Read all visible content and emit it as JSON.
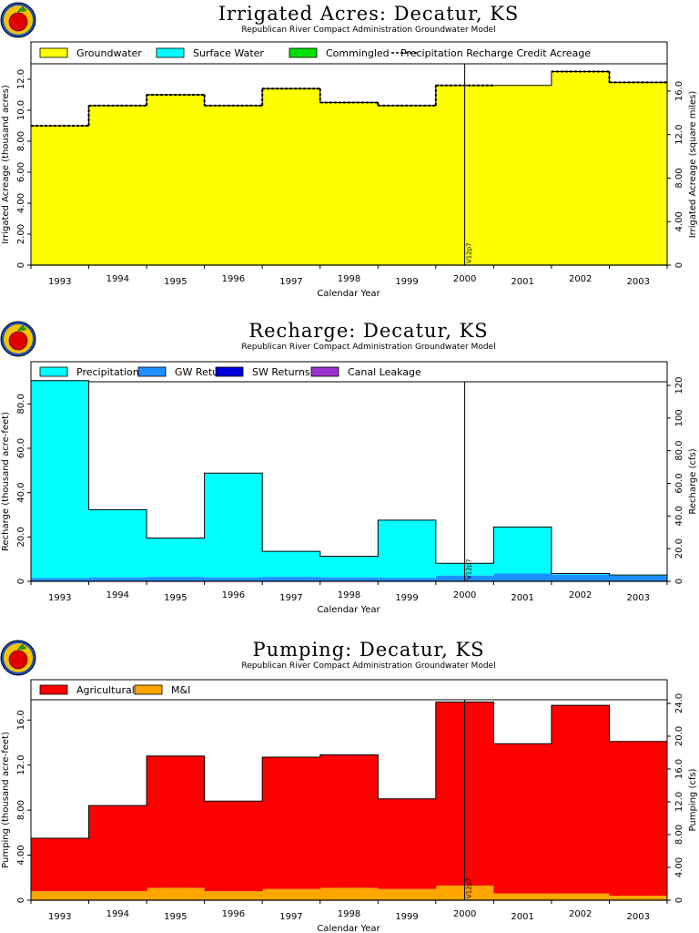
{
  "colors": {
    "groundwater": "#ffff00",
    "surface_water": "#00ffff",
    "commingled": "#00e000",
    "precip_credit_line": "#000000",
    "precipitation": "#00ffff",
    "gw_returns": "#1e90ff",
    "sw_returns": "#0000dd",
    "canal_leakage": "#9932cc",
    "agricultural": "#ff0000",
    "mi": "#ffa500"
  },
  "icons": [
    "apple-logo-icon",
    "apple-logo-icon",
    "apple-logo-icon"
  ],
  "years": [
    "1993",
    "1994",
    "1995",
    "1996",
    "1997",
    "1998",
    "1999",
    "2000",
    "2001",
    "2002",
    "2003"
  ],
  "vertical_marker": "V12p7",
  "chart_data": [
    {
      "id": "irrigated",
      "type": "area",
      "title": "Irrigated Acres: Decatur, KS",
      "subtitle": "Republican River Compact Administration Groundwater Model",
      "xlabel": "Calendar Year",
      "ylabel": "Irrigated Acreage (thousand acres)",
      "ylabel_right": "Irrigated Acreage (square miles)",
      "ylim": [
        0,
        13.0
      ],
      "yticks": [
        "0",
        "2.00",
        "4.00",
        "6.00",
        "8.00",
        "10.0",
        "12.0"
      ],
      "yticks_right": [
        "0",
        "4.00",
        "8.00",
        "12.0",
        "16.0"
      ],
      "legend": {
        "position": "top",
        "entries": [
          {
            "label": "Groundwater",
            "color_key": "groundwater",
            "kind": "box"
          },
          {
            "label": "Surface Water",
            "color_key": "surface_water",
            "kind": "box"
          },
          {
            "label": "Commingled",
            "color_key": "commingled",
            "kind": "box"
          },
          {
            "label": "Precipitation Recharge Credit Acreage",
            "color_key": "precip_credit_line",
            "kind": "dash"
          }
        ]
      },
      "series": [
        {
          "name": "Groundwater",
          "color_key": "groundwater",
          "values": [
            9.0,
            10.3,
            11.0,
            10.3,
            11.4,
            10.5,
            10.3,
            11.6,
            11.6,
            12.5,
            11.8
          ]
        },
        {
          "name": "Surface Water",
          "color_key": "surface_water",
          "values": [
            0,
            0,
            0,
            0,
            0,
            0,
            0,
            0,
            0,
            0,
            0
          ]
        },
        {
          "name": "Commingled",
          "color_key": "commingled",
          "values": [
            0,
            0,
            0,
            0,
            0,
            0,
            0,
            0,
            0,
            0,
            0
          ]
        }
      ],
      "line": {
        "name": "Precipitation Recharge Credit Acreage",
        "values": [
          9.0,
          10.3,
          11.0,
          10.3,
          11.4,
          10.5,
          10.3,
          11.6,
          null,
          12.5,
          11.8
        ]
      }
    },
    {
      "id": "recharge",
      "type": "area",
      "title": "Recharge: Decatur, KS",
      "subtitle": "Republican River Compact Administration Groundwater Model",
      "xlabel": "Calendar Year",
      "ylabel": "Recharge (thousand acre-feet)",
      "ylabel_right": "Recharge (cfs)",
      "ylim": [
        0,
        90.0
      ],
      "yticks": [
        "0",
        "20.0",
        "40.0",
        "60.0",
        "80.0"
      ],
      "yticks_right": [
        "0",
        "20.0",
        "40.0",
        "60.0",
        "80.0",
        "100",
        "120"
      ],
      "legend": {
        "position": "top",
        "entries": [
          {
            "label": "Precipitation",
            "color_key": "precipitation",
            "kind": "box"
          },
          {
            "label": "GW Returns",
            "color_key": "gw_returns",
            "kind": "box"
          },
          {
            "label": "SW Returns",
            "color_key": "sw_returns",
            "kind": "box"
          },
          {
            "label": "Canal Leakage",
            "color_key": "canal_leakage",
            "kind": "box"
          }
        ]
      },
      "series": [
        {
          "name": "GW Returns",
          "color_key": "gw_returns",
          "values": [
            1.5,
            1.8,
            2.0,
            1.8,
            2.0,
            1.8,
            1.6,
            2.6,
            3.5,
            3.0,
            2.5
          ]
        },
        {
          "name": "SW Returns",
          "color_key": "sw_returns",
          "values": [
            0,
            0,
            0,
            0,
            0,
            0,
            0,
            0,
            0,
            0,
            0
          ]
        },
        {
          "name": "Canal Leakage",
          "color_key": "canal_leakage",
          "values": [
            0,
            0,
            0,
            0,
            0,
            0,
            0,
            0,
            0,
            0,
            0
          ]
        },
        {
          "name": "Precipitation",
          "color_key": "precipitation",
          "values": [
            89.0,
            30.5,
            17.5,
            47.0,
            11.5,
            9.5,
            26.0,
            5.5,
            21.0,
            0.5,
            0.3
          ]
        }
      ]
    },
    {
      "id": "pumping",
      "type": "area",
      "title": "Pumping: Decatur, KS",
      "subtitle": "Republican River Compact Administration Groundwater Model",
      "xlabel": "Calendar Year",
      "ylabel": "Pumping (thousand acre-feet)",
      "ylabel_right": "Pumping (cfs)",
      "ylim": [
        0,
        17.8
      ],
      "yticks": [
        "0",
        "4.00",
        "8.00",
        "12.0",
        "16.0"
      ],
      "yticks_right": [
        "0",
        "4.00",
        "8.00",
        "12.0",
        "16.0",
        "20.0",
        "24.0"
      ],
      "legend": {
        "position": "top",
        "entries": [
          {
            "label": "Agricultural",
            "color_key": "agricultural",
            "kind": "box"
          },
          {
            "label": "M&I",
            "color_key": "mi",
            "kind": "box"
          }
        ]
      },
      "series": [
        {
          "name": "M&I",
          "color_key": "mi",
          "values": [
            0.8,
            0.8,
            1.1,
            0.8,
            1.0,
            1.1,
            1.0,
            1.3,
            0.6,
            0.6,
            0.4
          ]
        },
        {
          "name": "Agricultural",
          "color_key": "agricultural",
          "values": [
            4.7,
            7.6,
            11.7,
            8.0,
            11.7,
            11.8,
            8.0,
            16.3,
            13.3,
            16.7,
            13.7
          ]
        }
      ]
    }
  ]
}
